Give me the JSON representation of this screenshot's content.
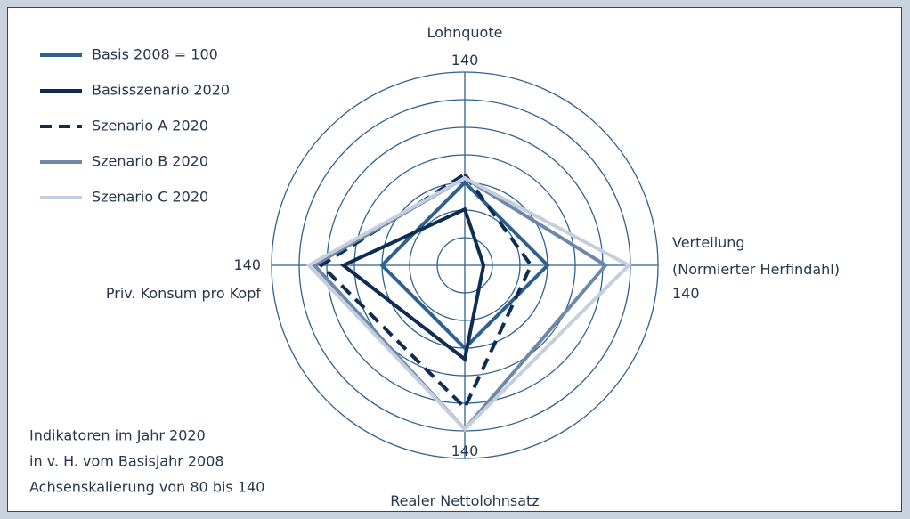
{
  "chart_data": {
    "type": "radar",
    "categories": [
      "Lohnquote",
      "Verteilung\n(Normierter Herfindahl)",
      "Realer Nettolohnsatz",
      "Priv. Konsum pro Kopf"
    ],
    "rlim": [
      70,
      140
    ],
    "rticks": [
      80,
      90,
      100,
      110,
      120,
      130,
      140
    ],
    "series": [
      {
        "name": "Basis 2008 = 100",
        "color": "#2f618f",
        "dash": false,
        "values": [
          100,
          100,
          100,
          100
        ]
      },
      {
        "name": "Basisszenario 2020",
        "color": "#0f2d52",
        "dash": false,
        "values": [
          90.3,
          76.8,
          104,
          114
        ]
      },
      {
        "name": "Szenario A 2020",
        "color": "#0f2d52",
        "dash": true,
        "values": [
          103,
          94,
          121.6,
          122
        ]
      },
      {
        "name": "Szenario B 2020",
        "color": "#6f88a9",
        "dash": false,
        "values": [
          101.6,
          121,
          129.4,
          124.5
        ]
      },
      {
        "name": "Szenario C 2020",
        "color": "#c4cedd",
        "dash": false,
        "values": [
          101.6,
          129.4,
          129.4,
          126.5
        ]
      }
    ],
    "notes": [
      "Indikatoren im Jahr 2020",
      "in v. H. vom Basisjahr 2008",
      "Achsenskalierung von 80 bis 140"
    ]
  }
}
